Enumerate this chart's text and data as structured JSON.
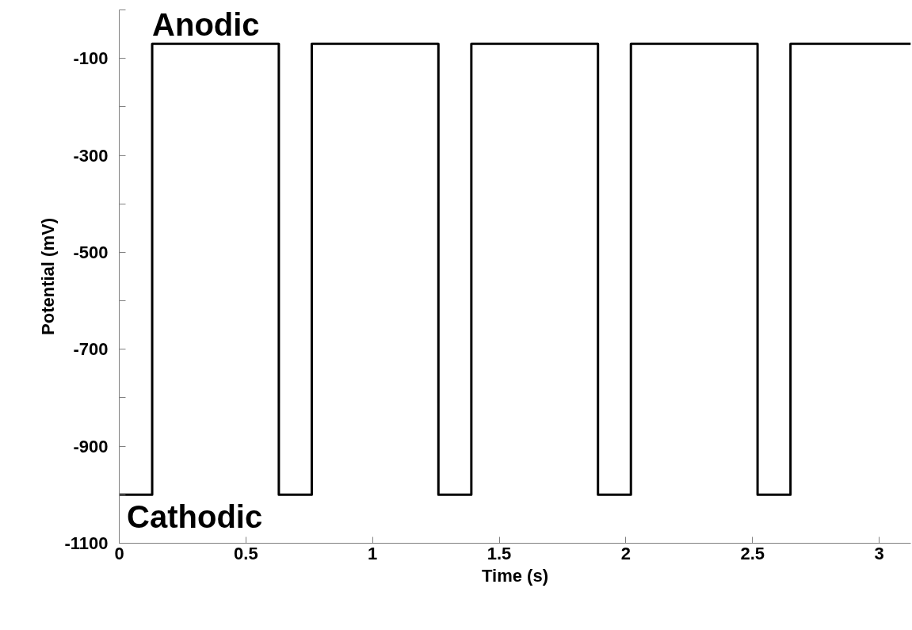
{
  "chart_data": {
    "type": "step",
    "xlabel": "Time (s)",
    "ylabel": "Potential (mV)",
    "xlim": [
      0,
      3.125
    ],
    "ylim": [
      -1100,
      0
    ],
    "xticks": [
      0,
      0.5,
      1,
      1.5,
      2,
      2.5,
      3
    ],
    "yticks": [
      {
        "value": 0,
        "label": null
      },
      -100,
      {
        "value": -200,
        "label": null
      },
      -300,
      {
        "value": -400,
        "label": null
      },
      -500,
      {
        "value": -600,
        "label": null
      },
      -700,
      {
        "value": -800,
        "label": null
      },
      -900,
      {
        "value": -1000,
        "label": null
      },
      -1100
    ],
    "grid": false,
    "marker": "none",
    "line_style": "solid",
    "series": [
      {
        "color": "#000000",
        "x": [
          0,
          0.13,
          0.63,
          0.76,
          1.26,
          1.39,
          1.89,
          2.02,
          2.52,
          2.65,
          3.125
        ],
        "values": [
          -1000,
          -70,
          -1000,
          -70,
          -1000,
          -70,
          -1000,
          -70,
          -1000,
          -70,
          -70
        ]
      }
    ],
    "annotations": [
      {
        "text": "Anodic",
        "x": 0.13,
        "y": -70
      },
      {
        "text": "Cathodic",
        "x": 0.03,
        "y": -1000
      }
    ]
  }
}
